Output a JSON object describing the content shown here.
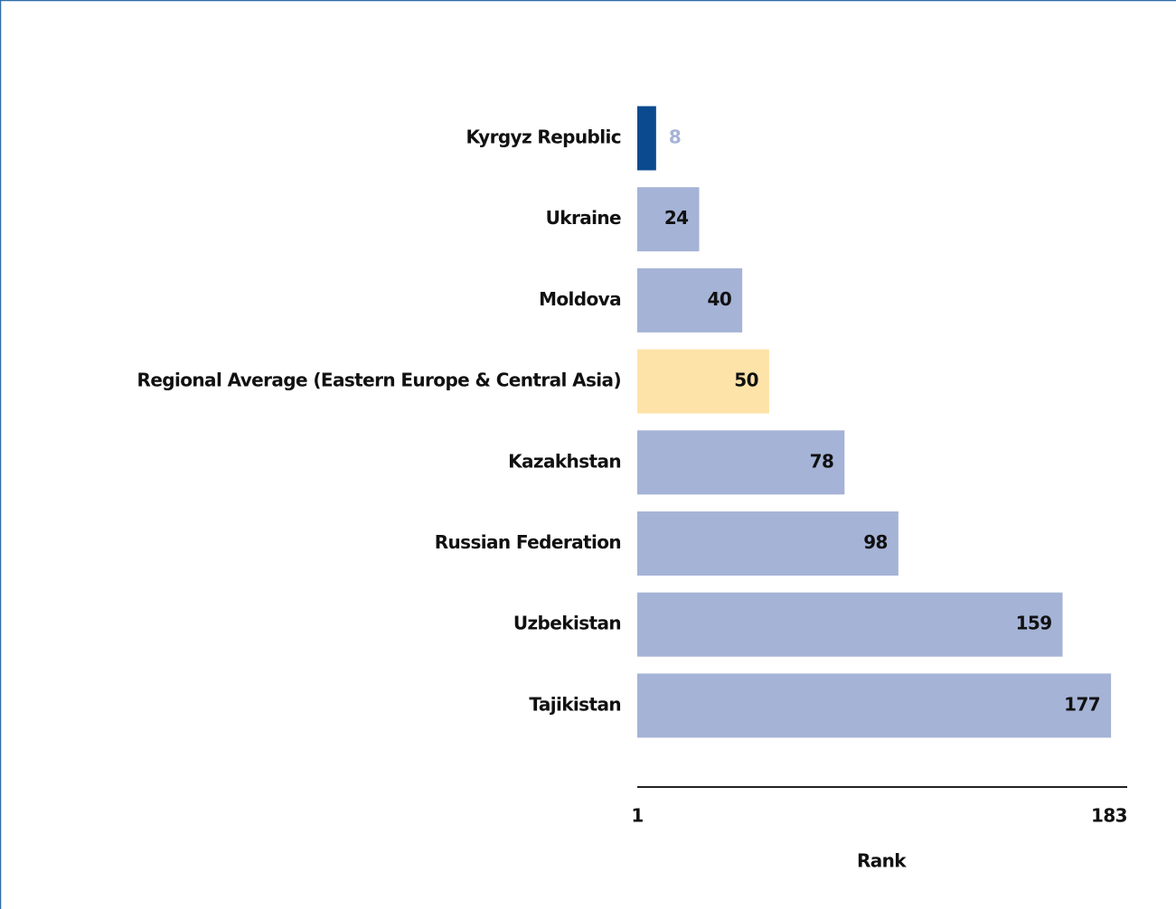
{
  "chart_data": {
    "type": "bar",
    "orientation": "horizontal",
    "categories": [
      "Kyrgyz Republic",
      "Ukraine",
      "Moldova",
      "Regional Average (Eastern Europe & Central Asia)",
      "Kazakhstan",
      "Russian Federation",
      "Uzbekistan",
      "Tajikistan"
    ],
    "values": [
      8,
      24,
      40,
      50,
      78,
      98,
      159,
      177
    ],
    "colors": [
      "#0b4a8e",
      "#a5b3d6",
      "#a5b3d6",
      "#fde3a8",
      "#a5b3d6",
      "#a5b3d6",
      "#a5b3d6",
      "#a5b3d6"
    ],
    "xlim": [
      1,
      183
    ],
    "xticks": [
      1,
      183
    ],
    "xlabel": "Rank"
  }
}
